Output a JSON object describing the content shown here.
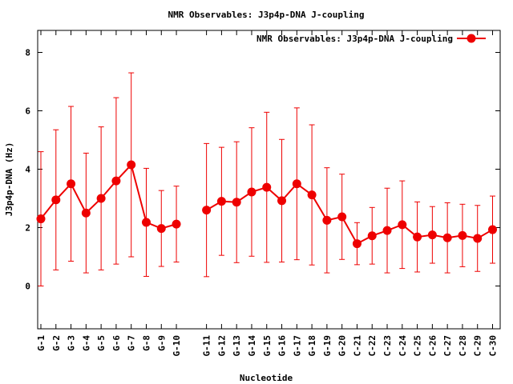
{
  "chart_data": {
    "type": "line",
    "title": "NMR Observables: J3p4p-DNA J-coupling",
    "xlabel": "Nucleotide",
    "ylabel": "J3p4p-DNA (Hz)",
    "ylim": [
      -1.5,
      8.7
    ],
    "yticks": [
      0,
      2,
      4,
      6,
      8
    ],
    "grid": false,
    "legend_position": "top-right",
    "categories": [
      "G-1",
      "G-2",
      "G-3",
      "G-4",
      "G-5",
      "G-6",
      "G-7",
      "G-8",
      "G-9",
      "G-10",
      "",
      "G-11",
      "G-12",
      "G-13",
      "G-14",
      "G-15",
      "G-16",
      "G-17",
      "G-18",
      "G-19",
      "G-20",
      "C-21",
      "C-22",
      "C-23",
      "C-24",
      "C-25",
      "C-26",
      "C-27",
      "C-28",
      "C-29",
      "C-30"
    ],
    "series": [
      {
        "name": "NMR Observables: J3p4p-DNA J-coupling",
        "color": "#ee0000",
        "values": [
          2.3,
          2.95,
          3.5,
          2.5,
          3.0,
          3.6,
          4.15,
          2.18,
          1.97,
          2.12,
          null,
          2.6,
          2.9,
          2.87,
          3.22,
          3.38,
          2.92,
          3.5,
          3.12,
          2.25,
          2.37,
          1.45,
          1.72,
          1.9,
          2.1,
          1.68,
          1.75,
          1.65,
          1.73,
          1.63,
          1.93
        ],
        "errors": [
          2.3,
          2.4,
          2.65,
          2.05,
          2.45,
          2.85,
          3.15,
          1.85,
          1.3,
          1.3,
          null,
          2.28,
          1.85,
          2.07,
          2.2,
          2.57,
          2.1,
          2.6,
          2.4,
          1.8,
          1.46,
          0.72,
          0.97,
          1.45,
          1.5,
          1.2,
          0.97,
          1.2,
          1.07,
          1.13,
          1.15
        ]
      }
    ]
  }
}
